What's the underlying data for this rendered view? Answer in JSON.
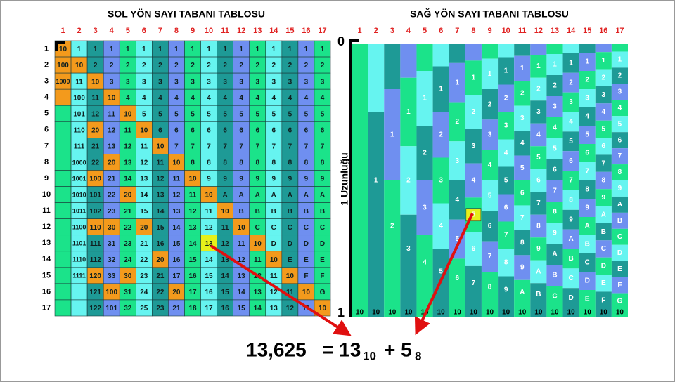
{
  "left": {
    "title": "SOL YÖN SAYI TABANI TABLOSU",
    "col_headers": [
      1,
      2,
      3,
      4,
      5,
      6,
      7,
      8,
      9,
      10,
      11,
      12,
      13,
      14,
      15,
      16,
      17
    ],
    "row_headers": [
      1,
      2,
      3,
      4,
      5,
      6,
      7,
      8,
      9,
      10,
      11,
      12,
      13,
      14,
      15,
      16,
      17
    ],
    "rows": [
      [
        "10",
        "1",
        "1",
        "1",
        "1",
        "1",
        "1",
        "1",
        "1",
        "1",
        "1",
        "1",
        "1",
        "1",
        "1",
        "1",
        "1"
      ],
      [
        "100",
        "10",
        "2",
        "2",
        "2",
        "2",
        "2",
        "2",
        "2",
        "2",
        "2",
        "2",
        "2",
        "2",
        "2",
        "2",
        "2"
      ],
      [
        "1000",
        "11",
        "10",
        "3",
        "3",
        "3",
        "3",
        "3",
        "3",
        "3",
        "3",
        "3",
        "3",
        "3",
        "3",
        "3",
        "3"
      ],
      [
        null,
        "100",
        "11",
        "10",
        "4",
        "4",
        "4",
        "4",
        "4",
        "4",
        "4",
        "4",
        "4",
        "4",
        "4",
        "4",
        "4"
      ],
      [
        null,
        "101",
        "12",
        "11",
        "10",
        "5",
        "5",
        "5",
        "5",
        "5",
        "5",
        "5",
        "5",
        "5",
        "5",
        "5",
        "5"
      ],
      [
        null,
        "110",
        "20",
        "12",
        "11",
        "10",
        "6",
        "6",
        "6",
        "6",
        "6",
        "6",
        "6",
        "6",
        "6",
        "6",
        "6"
      ],
      [
        null,
        "111",
        "21",
        "13",
        "12",
        "11",
        "10",
        "7",
        "7",
        "7",
        "7",
        "7",
        "7",
        "7",
        "7",
        "7",
        "7"
      ],
      [
        null,
        "1000",
        "22",
        "20",
        "13",
        "12",
        "11",
        "10",
        "8",
        "8",
        "8",
        "8",
        "8",
        "8",
        "8",
        "8",
        "8"
      ],
      [
        null,
        "1001",
        "100",
        "21",
        "14",
        "13",
        "12",
        "11",
        "10",
        "9",
        "9",
        "9",
        "9",
        "9",
        "9",
        "9",
        "9"
      ],
      [
        null,
        "1010",
        "101",
        "22",
        "20",
        "14",
        "13",
        "12",
        "11",
        "10",
        "A",
        "A",
        "A",
        "A",
        "A",
        "A",
        "A"
      ],
      [
        null,
        "1011",
        "102",
        "23",
        "21",
        "15",
        "14",
        "13",
        "12",
        "11",
        "10",
        "B",
        "B",
        "B",
        "B",
        "B",
        "B"
      ],
      [
        null,
        "1100",
        "110",
        "30",
        "22",
        "20",
        "15",
        "14",
        "13",
        "12",
        "11",
        "10",
        "C",
        "C",
        "C",
        "C",
        "C"
      ],
      [
        null,
        "1101",
        "111",
        "31",
        "23",
        "21",
        "16",
        "15",
        "14",
        "13",
        "12",
        "11",
        "10",
        "D",
        "D",
        "D",
        "D"
      ],
      [
        null,
        "1110",
        "112",
        "32",
        "24",
        "22",
        "20",
        "16",
        "15",
        "14",
        "13",
        "12",
        "11",
        "10",
        "E",
        "E",
        "E"
      ],
      [
        null,
        "1111",
        "120",
        "33",
        "30",
        "23",
        "21",
        "17",
        "16",
        "15",
        "14",
        "13",
        "12",
        "11",
        "10",
        "F",
        "F"
      ],
      [
        null,
        null,
        "121",
        "100",
        "31",
        "24",
        "22",
        "20",
        "17",
        "16",
        "15",
        "14",
        "13",
        "12",
        "11",
        "10",
        "G"
      ],
      [
        null,
        null,
        "122",
        "101",
        "32",
        "25",
        "23",
        "21",
        "18",
        "17",
        "16",
        "15",
        "14",
        "13",
        "12",
        "11",
        "10"
      ]
    ]
  },
  "right": {
    "title": "SAĞ YÖN SAYI TABANI TABLOSU",
    "axis_label": "1 Uzunluğu",
    "axis_top": "0",
    "axis_bottom": "1",
    "col_headers": [
      1,
      2,
      3,
      4,
      5,
      6,
      7,
      8,
      9,
      10,
      11,
      12,
      13,
      14,
      15,
      16,
      17
    ],
    "columns": [
      [
        "10"
      ],
      [
        "1",
        "10"
      ],
      [
        "1",
        "2",
        "10"
      ],
      [
        "1",
        "2",
        "3",
        "10"
      ],
      [
        "1",
        "2",
        "3",
        "4",
        "10"
      ],
      [
        "1",
        "2",
        "3",
        "4",
        "5",
        "10"
      ],
      [
        "1",
        "2",
        "3",
        "4",
        "5",
        "6",
        "10"
      ],
      [
        "1",
        "2",
        "3",
        "4",
        "5",
        "6",
        "7",
        "10"
      ],
      [
        "1",
        "2",
        "3",
        "4",
        "5",
        "6",
        "7",
        "8",
        "10"
      ],
      [
        "1",
        "2",
        "3",
        "4",
        "5",
        "6",
        "7",
        "8",
        "9",
        "10"
      ],
      [
        "1",
        "2",
        "3",
        "4",
        "5",
        "6",
        "7",
        "8",
        "9",
        "A",
        "10"
      ],
      [
        "1",
        "2",
        "3",
        "4",
        "5",
        "6",
        "7",
        "8",
        "9",
        "A",
        "B",
        "10"
      ],
      [
        "1",
        "2",
        "3",
        "4",
        "5",
        "6",
        "7",
        "8",
        "9",
        "A",
        "B",
        "C",
        "10"
      ],
      [
        "1",
        "2",
        "3",
        "4",
        "5",
        "6",
        "7",
        "8",
        "9",
        "A",
        "B",
        "C",
        "D",
        "10"
      ],
      [
        "1",
        "2",
        "3",
        "4",
        "5",
        "6",
        "7",
        "8",
        "9",
        "A",
        "B",
        "C",
        "D",
        "E",
        "10"
      ],
      [
        "1",
        "2",
        "3",
        "4",
        "5",
        "6",
        "7",
        "8",
        "9",
        "A",
        "B",
        "C",
        "D",
        "E",
        "F",
        "10"
      ],
      [
        "1",
        "2",
        "3",
        "4",
        "5",
        "6",
        "7",
        "8",
        "9",
        "A",
        "B",
        "C",
        "D",
        "E",
        "F",
        "G",
        "10"
      ]
    ]
  },
  "equation": {
    "number": "13,625",
    "part1": "= 13",
    "base1": "10",
    "part2": "+ 5",
    "base2": "8"
  }
}
